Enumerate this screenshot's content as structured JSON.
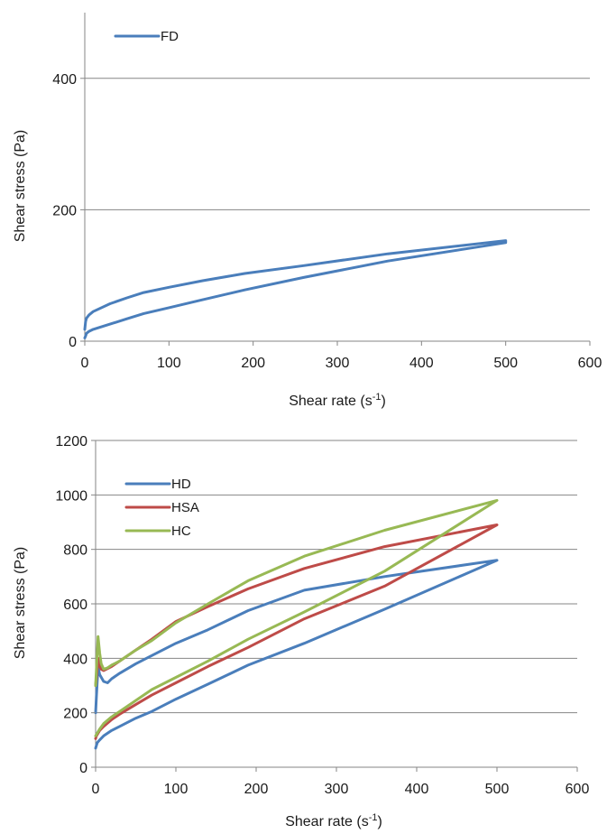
{
  "colors": {
    "blue": "#4a7ebb",
    "red": "#be4b48",
    "green": "#98b954"
  },
  "chart_data": [
    {
      "type": "line",
      "xlabel": "Shear rate (s",
      "xlabel_sup": "-1",
      "xlabel_end": ")",
      "ylabel": "Shear stress (Pa)",
      "xlim": [
        0,
        600
      ],
      "ylim": [
        0,
        500
      ],
      "xticks": [
        0,
        100,
        200,
        300,
        400,
        500,
        600
      ],
      "yticks": [
        0,
        200,
        400
      ],
      "grid": "horizontal",
      "legend_position": "top-left",
      "series": [
        {
          "name": "FD",
          "color": "#4a7ebb",
          "x": [
            0,
            1,
            2,
            5,
            10,
            30,
            50,
            70,
            100,
            140,
            190,
            260,
            360,
            500,
            500,
            360,
            260,
            190,
            140,
            100,
            70,
            50,
            30,
            10,
            5,
            2,
            1,
            0
          ],
          "y": [
            5,
            8,
            12,
            15,
            18,
            26,
            34,
            42,
            51,
            63,
            78,
            97,
            122,
            150,
            153,
            133,
            115,
            103,
            92,
            82,
            74,
            66,
            57,
            45,
            40,
            35,
            30,
            18
          ]
        }
      ]
    },
    {
      "type": "line",
      "xlabel": "Shear rate (s",
      "xlabel_sup": "-1",
      "xlabel_end": ")",
      "ylabel": "Shear stress (Pa)",
      "xlim": [
        0,
        600
      ],
      "ylim": [
        0,
        1200
      ],
      "xticks": [
        0,
        100,
        200,
        300,
        400,
        500,
        600
      ],
      "yticks": [
        0,
        200,
        400,
        600,
        800,
        1000,
        1200
      ],
      "grid": "horizontal",
      "legend_position": "top-left",
      "series": [
        {
          "name": "HD",
          "color": "#4a7ebb",
          "x": [
            0,
            1,
            2,
            5,
            10,
            20,
            30,
            50,
            70,
            100,
            140,
            190,
            260,
            360,
            500,
            500,
            360,
            260,
            190,
            140,
            100,
            70,
            50,
            30,
            20,
            15,
            10,
            5,
            3,
            1,
            0
          ],
          "y": [
            70,
            80,
            90,
            100,
            115,
            135,
            150,
            180,
            205,
            250,
            305,
            375,
            455,
            580,
            760,
            760,
            700,
            650,
            575,
            505,
            455,
            410,
            380,
            345,
            325,
            310,
            315,
            340,
            370,
            260,
            200
          ]
        },
        {
          "name": "HSA",
          "color": "#be4b48",
          "x": [
            0,
            1,
            2,
            5,
            10,
            20,
            30,
            50,
            70,
            100,
            140,
            190,
            260,
            360,
            500,
            500,
            360,
            260,
            190,
            140,
            100,
            70,
            50,
            30,
            20,
            10,
            7,
            5,
            3,
            1,
            0
          ],
          "y": [
            105,
            115,
            120,
            135,
            150,
            175,
            195,
            230,
            265,
            310,
            370,
            440,
            545,
            665,
            890,
            890,
            810,
            730,
            655,
            590,
            535,
            470,
            430,
            390,
            370,
            355,
            360,
            370,
            400,
            330,
            300
          ]
        },
        {
          "name": "HC",
          "color": "#98b954",
          "x": [
            0,
            1,
            2,
            5,
            10,
            20,
            30,
            50,
            70,
            100,
            140,
            190,
            260,
            360,
            500,
            500,
            360,
            260,
            190,
            140,
            100,
            70,
            50,
            30,
            20,
            15,
            10,
            7,
            5,
            3,
            1,
            0
          ],
          "y": [
            115,
            120,
            125,
            140,
            160,
            185,
            205,
            245,
            285,
            330,
            390,
            470,
            570,
            720,
            980,
            980,
            870,
            775,
            685,
            600,
            530,
            465,
            430,
            390,
            375,
            365,
            360,
            380,
            420,
            480,
            360,
            300
          ]
        }
      ]
    }
  ]
}
